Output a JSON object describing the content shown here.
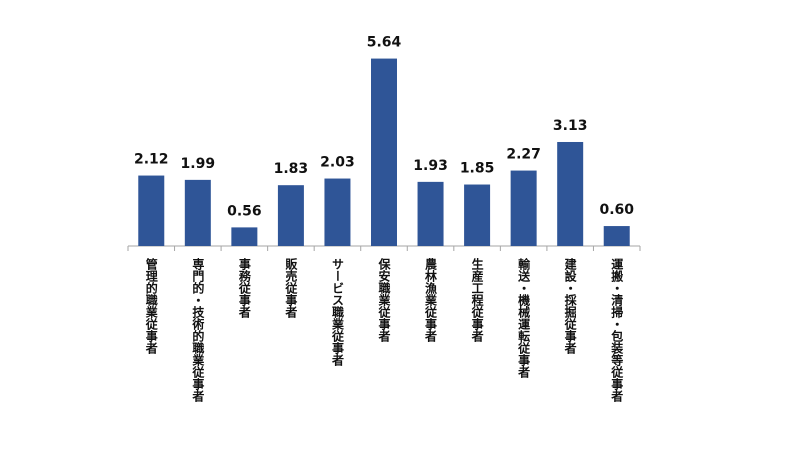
{
  "chart_data": {
    "type": "bar",
    "categories": [
      "管理的職業従事者",
      "専門的・技術的職業従事者",
      "事務従事者",
      "販売従事者",
      "サービス職業従事者",
      "保安職業従事者",
      "農林漁業従事者",
      "生産工程従事者",
      "輸送・機械運転従事者",
      "建設・採掘従事者",
      "運搬・清掃・包装等従事者"
    ],
    "values": [
      2.12,
      1.99,
      0.56,
      1.83,
      2.03,
      5.64,
      1.93,
      1.85,
      2.27,
      3.13,
      0.6
    ],
    "value_labels": [
      "2.12",
      "1.99",
      "0.56",
      "1.83",
      "2.03",
      "5.64",
      "1.93",
      "1.85",
      "2.27",
      "3.13",
      "0.60"
    ],
    "ylim": [
      0,
      6.5
    ],
    "grid": false,
    "legend": "none",
    "colors": {
      "bar": "#2F5597",
      "axis": "#A6A6A6",
      "text": "#111111"
    }
  }
}
